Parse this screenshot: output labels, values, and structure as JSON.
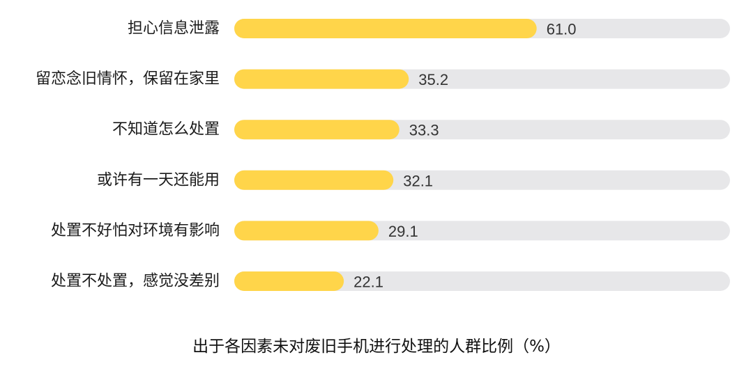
{
  "colors": {
    "bar_fill": "#FFD54A",
    "track_fill": "#E7E7E9",
    "label_text": "#1A1A1A",
    "value_text": "#333333"
  },
  "chart_data": {
    "type": "bar",
    "orientation": "horizontal",
    "categories": [
      "担心信息泄露",
      "留恋念旧情怀，保留在家里",
      "不知道怎么处置",
      "或许有一天还能用",
      "处置不好怕对环境有影响",
      "处置不处置，感觉没差别"
    ],
    "values": [
      61.0,
      35.2,
      33.3,
      32.1,
      29.1,
      22.1
    ],
    "value_labels": [
      "61.0",
      "35.2",
      "33.3",
      "32.1",
      "29.1",
      "22.1"
    ],
    "title": "出于各因素未对废旧手机进行处理的人群比例（%）",
    "xlabel": "",
    "ylabel": "",
    "xlim": [
      0,
      100
    ],
    "grid": false,
    "legend": "none"
  }
}
